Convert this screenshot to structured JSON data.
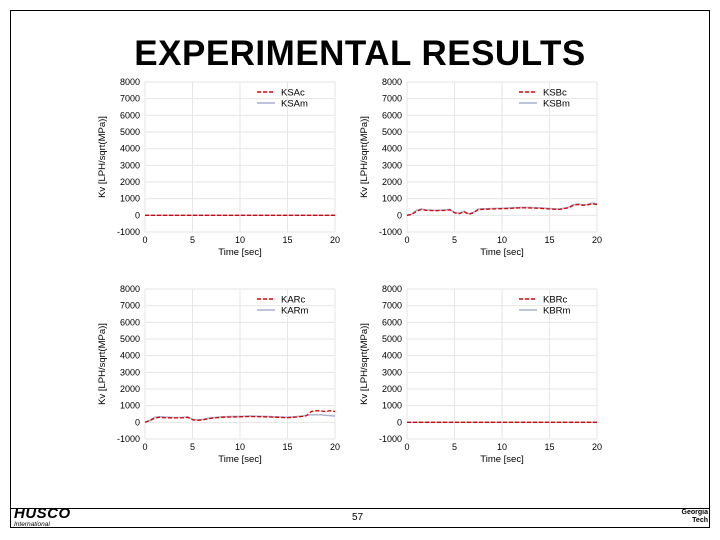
{
  "slide": {
    "title": "EXPERIMENTAL RESULTS",
    "page_number": "57",
    "logo_left": {
      "brand": "HUSCO",
      "sub": "International"
    },
    "logo_right": {
      "line1": "Georgia",
      "line2": "Tech"
    }
  },
  "colors": {
    "computed": "#dd0000",
    "measured": "#a8b0d0",
    "grid": "#e6e6e6"
  },
  "chart_data": [
    {
      "type": "line",
      "ylabel": "Kv [LPH/sqrt(MPa)]",
      "xlabel": "Time [sec]",
      "xlim": [
        0,
        20
      ],
      "ylim": [
        -1000,
        8000
      ],
      "xticks": [
        0,
        5,
        10,
        15,
        20
      ],
      "yticks": [
        -1000,
        0,
        1000,
        2000,
        3000,
        4000,
        5000,
        6000,
        7000,
        8000
      ],
      "legend_position": "top-right",
      "series": [
        {
          "name": "KSAc",
          "style": "dashed",
          "x": [
            0,
            20
          ],
          "y": [
            0,
            0
          ]
        },
        {
          "name": "KSAm",
          "style": "solid",
          "x": [
            0,
            20
          ],
          "y": [
            0,
            0
          ]
        }
      ]
    },
    {
      "type": "line",
      "ylabel": "Kv [LPH/sqrt(MPa)]",
      "xlabel": "Time [sec]",
      "xlim": [
        0,
        20
      ],
      "ylim": [
        -1000,
        8000
      ],
      "xticks": [
        0,
        5,
        10,
        15,
        20
      ],
      "yticks": [
        -1000,
        0,
        1000,
        2000,
        3000,
        4000,
        5000,
        6000,
        7000,
        8000
      ],
      "legend_position": "top-right",
      "series": [
        {
          "name": "KSBc",
          "style": "dashed",
          "x": [
            0,
            0.5,
            1,
            1.5,
            2,
            3,
            4,
            4.5,
            5,
            5.5,
            6,
            6.5,
            7,
            7.5,
            8,
            9,
            10,
            11,
            12,
            13,
            14,
            15,
            16,
            16.5,
            17,
            17.5,
            18,
            18.5,
            19,
            19.5,
            20
          ],
          "y": [
            0,
            50,
            250,
            350,
            300,
            280,
            300,
            330,
            150,
            100,
            220,
            60,
            150,
            350,
            360,
            380,
            400,
            420,
            450,
            440,
            420,
            380,
            350,
            400,
            450,
            600,
            650,
            600,
            620,
            700,
            650
          ]
        },
        {
          "name": "KSBm",
          "style": "solid",
          "x": [
            0,
            0.5,
            1,
            1.5,
            2,
            3,
            4,
            4.5,
            5,
            5.5,
            6,
            6.5,
            7,
            7.5,
            8,
            9,
            10,
            11,
            12,
            13,
            14,
            15,
            16,
            16.5,
            17,
            17.5,
            18,
            18.5,
            19,
            19.5,
            20
          ],
          "y": [
            0,
            80,
            300,
            380,
            330,
            300,
            320,
            360,
            170,
            130,
            250,
            90,
            180,
            380,
            390,
            410,
            430,
            450,
            480,
            470,
            450,
            410,
            380,
            430,
            480,
            640,
            690,
            640,
            660,
            740,
            690
          ]
        }
      ]
    },
    {
      "type": "line",
      "ylabel": "Kv [LPH/sqrt(MPa)]",
      "xlabel": "Time [sec]",
      "xlim": [
        0,
        20
      ],
      "ylim": [
        -1000,
        8000
      ],
      "xticks": [
        0,
        5,
        10,
        15,
        20
      ],
      "yticks": [
        -1000,
        0,
        1000,
        2000,
        3000,
        4000,
        5000,
        6000,
        7000,
        8000
      ],
      "legend_position": "top-right",
      "series": [
        {
          "name": "KARc",
          "style": "dashed",
          "x": [
            0,
            0.5,
            1,
            1.5,
            2,
            3,
            4,
            4.5,
            5,
            5.5,
            6,
            6.5,
            7,
            8,
            9,
            10,
            11,
            12,
            13,
            14,
            15,
            16,
            16.5,
            17,
            17.5,
            18,
            18.5,
            19,
            19.5,
            20
          ],
          "y": [
            0,
            100,
            250,
            300,
            280,
            260,
            270,
            300,
            150,
            120,
            140,
            200,
            250,
            300,
            320,
            330,
            350,
            340,
            320,
            300,
            280,
            320,
            350,
            400,
            650,
            700,
            680,
            650,
            700,
            650
          ]
        },
        {
          "name": "KARm",
          "style": "solid",
          "x": [
            0,
            0.5,
            1,
            1.5,
            2,
            3,
            4,
            4.5,
            5,
            5.5,
            6,
            6.5,
            7,
            8,
            9,
            10,
            11,
            12,
            13,
            14,
            15,
            16,
            16.5,
            17,
            17.5,
            18,
            18.5,
            19,
            19.5,
            20
          ],
          "y": [
            0,
            130,
            300,
            340,
            320,
            290,
            300,
            330,
            180,
            150,
            170,
            230,
            280,
            330,
            350,
            360,
            380,
            370,
            350,
            330,
            310,
            350,
            380,
            420,
            450,
            450,
            450,
            420,
            400,
            380
          ]
        }
      ]
    },
    {
      "type": "line",
      "ylabel": "Kv [LPH/sqrt(MPa)]",
      "xlabel": "Time [sec]",
      "xlim": [
        0,
        20
      ],
      "ylim": [
        -1000,
        8000
      ],
      "xticks": [
        0,
        5,
        10,
        15,
        20
      ],
      "yticks": [
        -1000,
        0,
        1000,
        2000,
        3000,
        4000,
        5000,
        6000,
        7000,
        8000
      ],
      "legend_position": "top-right",
      "series": [
        {
          "name": "KBRc",
          "style": "dashed",
          "x": [
            0,
            20
          ],
          "y": [
            0,
            0
          ]
        },
        {
          "name": "KBRm",
          "style": "solid",
          "x": [
            0,
            20
          ],
          "y": [
            0,
            0
          ]
        }
      ]
    }
  ]
}
